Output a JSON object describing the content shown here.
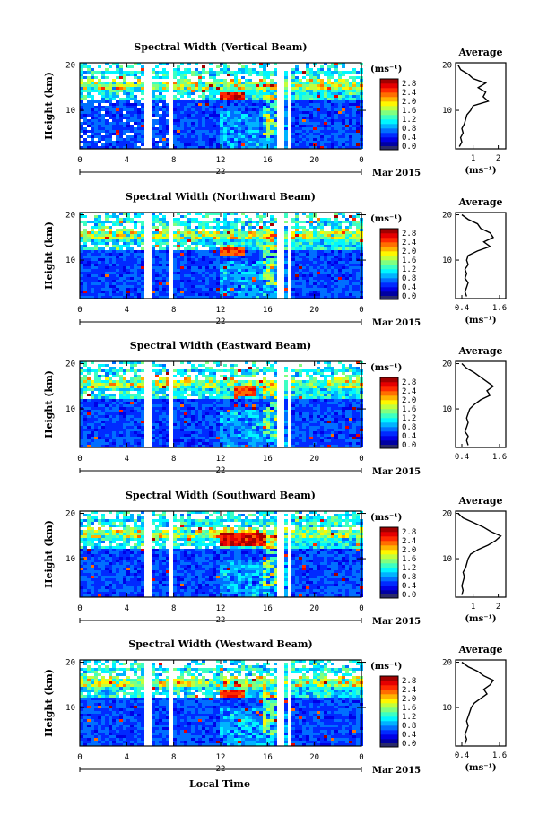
{
  "figure": {
    "x_axis_label": "Local Time",
    "date_label": "Mar 2015",
    "day_label": "22",
    "y_axis_label": "Height (km)",
    "colorbar_unit": "(ms⁻¹)",
    "profile_title": "Average",
    "profile_unit": "(ms⁻¹)"
  },
  "chart_data": [
    {
      "type": "heatmap",
      "title": "Spectral Width (Vertical Beam)",
      "ylabel": "Height (km)",
      "x_ticks": [
        "0",
        "4",
        "8",
        "12",
        "16",
        "20",
        "0"
      ],
      "y_ticks": [
        "10",
        "20"
      ],
      "xlim": [
        0,
        24
      ],
      "ylim": [
        1.5,
        20.5
      ],
      "colorbar_ticks": [
        "0.0",
        "0.4",
        "0.8",
        "1.2",
        "1.6",
        "2.0",
        "2.4",
        "2.8"
      ],
      "colorbar_range": [
        0,
        3.0
      ],
      "data_gaps_hours": [
        [
          5.6,
          6.0
        ],
        [
          7.5,
          7.9
        ],
        [
          16.9,
          17.3
        ],
        [
          17.6,
          17.9
        ]
      ],
      "enhanced_region": {
        "hours": [
          12,
          14
        ],
        "height_km": [
          12,
          14
        ],
        "value": 2.8
      },
      "profile": {
        "title": "Average",
        "xlabel": "(ms⁻¹)",
        "x_ticks": [
          "1",
          "2"
        ],
        "xlim": [
          0.3,
          2.3
        ],
        "heights": [
          2,
          3,
          4,
          5,
          6,
          7,
          8,
          9,
          10,
          11,
          12,
          13,
          14,
          15,
          16,
          17,
          18,
          19,
          20
        ],
        "values": [
          0.45,
          0.55,
          0.5,
          0.6,
          0.55,
          0.65,
          0.7,
          0.75,
          0.9,
          1.0,
          1.6,
          1.4,
          1.5,
          1.2,
          1.5,
          1.0,
          0.8,
          0.5,
          0.4
        ]
      }
    },
    {
      "type": "heatmap",
      "title": "Spectral Width (Northward Beam)",
      "ylabel": "Height (km)",
      "x_ticks": [
        "0",
        "4",
        "8",
        "12",
        "16",
        "20",
        "0"
      ],
      "y_ticks": [
        "10",
        "20"
      ],
      "xlim": [
        0,
        24
      ],
      "ylim": [
        1.5,
        20.5
      ],
      "colorbar_ticks": [
        "0.0",
        "0.4",
        "0.8",
        "1.2",
        "1.6",
        "2.0",
        "2.4",
        "2.8"
      ],
      "colorbar_range": [
        0,
        3.0
      ],
      "data_gaps_hours": [
        [
          5.6,
          6.0
        ],
        [
          7.5,
          7.9
        ],
        [
          16.9,
          17.3
        ],
        [
          17.6,
          17.9
        ]
      ],
      "enhanced_region": {
        "hours": [
          12,
          14
        ],
        "height_km": [
          11,
          13
        ],
        "value": 2.6
      },
      "profile": {
        "title": "Average",
        "xlabel": "(ms⁻¹)",
        "x_ticks": [
          "0.4",
          "1.6"
        ],
        "xlim": [
          0.2,
          1.8
        ],
        "heights": [
          2,
          3,
          4,
          5,
          6,
          7,
          8,
          9,
          10,
          11,
          12,
          13,
          14,
          15,
          16,
          17,
          18,
          19,
          20
        ],
        "values": [
          0.55,
          0.5,
          0.55,
          0.6,
          0.5,
          0.55,
          0.5,
          0.6,
          0.55,
          0.6,
          0.9,
          1.3,
          1.1,
          1.4,
          1.3,
          1.0,
          0.9,
          0.6,
          0.4
        ]
      }
    },
    {
      "type": "heatmap",
      "title": "Spectral Width (Eastward Beam)",
      "ylabel": "Height (km)",
      "x_ticks": [
        "0",
        "4",
        "8",
        "12",
        "16",
        "20",
        "0"
      ],
      "y_ticks": [
        "10",
        "20"
      ],
      "xlim": [
        0,
        24
      ],
      "ylim": [
        1.5,
        20.5
      ],
      "colorbar_ticks": [
        "0.0",
        "0.4",
        "0.8",
        "1.2",
        "1.6",
        "2.0",
        "2.4",
        "2.8"
      ],
      "colorbar_range": [
        0,
        3.0
      ],
      "data_gaps_hours": [
        [
          5.6,
          6.0
        ],
        [
          7.5,
          7.9
        ],
        [
          16.9,
          17.3
        ],
        [
          17.6,
          17.9
        ]
      ],
      "enhanced_region": {
        "hours": [
          13,
          15
        ],
        "height_km": [
          13,
          15
        ],
        "value": 2.6
      },
      "profile": {
        "title": "Average",
        "xlabel": "",
        "x_ticks": [
          "0.4",
          "1.6"
        ],
        "xlim": [
          0.2,
          1.8
        ],
        "heights": [
          2,
          3,
          4,
          5,
          6,
          7,
          8,
          9,
          10,
          11,
          12,
          13,
          14,
          15,
          16,
          17,
          18,
          19,
          20
        ],
        "values": [
          0.6,
          0.55,
          0.6,
          0.5,
          0.55,
          0.6,
          0.55,
          0.6,
          0.65,
          0.8,
          1.0,
          1.3,
          1.2,
          1.4,
          1.2,
          1.0,
          0.8,
          0.55,
          0.4
        ]
      }
    },
    {
      "type": "heatmap",
      "title": "Spectral Width (Southward Beam)",
      "ylabel": "Height (km)",
      "x_ticks": [
        "0",
        "4",
        "8",
        "12",
        "16",
        "20",
        "0"
      ],
      "y_ticks": [
        "10",
        "20"
      ],
      "xlim": [
        0,
        24
      ],
      "ylim": [
        1.5,
        20.5
      ],
      "colorbar_ticks": [
        "0.0",
        "0.4",
        "0.8",
        "1.2",
        "1.6",
        "2.0",
        "2.4",
        "2.8"
      ],
      "colorbar_range": [
        0,
        3.0
      ],
      "data_gaps_hours": [
        [
          5.6,
          6.0
        ],
        [
          7.5,
          7.9
        ],
        [
          16.9,
          17.3
        ],
        [
          17.6,
          17.9
        ]
      ],
      "enhanced_region": {
        "hours": [
          12,
          16
        ],
        "height_km": [
          13,
          16
        ],
        "value": 2.8
      },
      "profile": {
        "title": "Average",
        "xlabel": "(ms⁻¹)",
        "x_ticks": [
          "1",
          "2"
        ],
        "xlim": [
          0.3,
          2.3
        ],
        "heights": [
          2,
          3,
          4,
          5,
          6,
          7,
          8,
          9,
          10,
          11,
          12,
          13,
          14,
          15,
          16,
          17,
          18,
          19,
          20
        ],
        "values": [
          0.55,
          0.6,
          0.55,
          0.6,
          0.65,
          0.6,
          0.7,
          0.75,
          0.8,
          0.9,
          1.2,
          1.6,
          1.9,
          2.1,
          1.7,
          1.4,
          1.0,
          0.6,
          0.4
        ]
      }
    },
    {
      "type": "heatmap",
      "title": "Spectral Width (Westward Beam)",
      "ylabel": "Height (km)",
      "x_ticks": [
        "0",
        "4",
        "8",
        "12",
        "16",
        "20",
        "0"
      ],
      "y_ticks": [
        "10",
        "20"
      ],
      "xlim": [
        0,
        24
      ],
      "ylim": [
        1.5,
        20.5
      ],
      "colorbar_ticks": [
        "0.0",
        "0.4",
        "0.8",
        "1.2",
        "1.6",
        "2.0",
        "2.4",
        "2.8"
      ],
      "colorbar_range": [
        0,
        3.0
      ],
      "data_gaps_hours": [
        [
          5.6,
          6.0
        ],
        [
          7.5,
          7.9
        ],
        [
          16.9,
          17.3
        ],
        [
          17.6,
          17.9
        ]
      ],
      "enhanced_region": {
        "hours": [
          12,
          14
        ],
        "height_km": [
          12,
          14
        ],
        "value": 2.6
      },
      "profile": {
        "title": "Average",
        "xlabel": "(ms⁻¹)",
        "x_ticks": [
          "0.4",
          "1.6"
        ],
        "xlim": [
          0.2,
          1.8
        ],
        "heights": [
          2,
          3,
          4,
          5,
          6,
          7,
          8,
          9,
          10,
          11,
          12,
          13,
          14,
          15,
          16,
          17,
          18,
          19,
          20
        ],
        "values": [
          0.5,
          0.55,
          0.5,
          0.55,
          0.6,
          0.55,
          0.6,
          0.65,
          0.7,
          0.8,
          1.0,
          1.2,
          1.1,
          1.3,
          1.4,
          1.1,
          0.9,
          0.6,
          0.4
        ]
      }
    }
  ]
}
